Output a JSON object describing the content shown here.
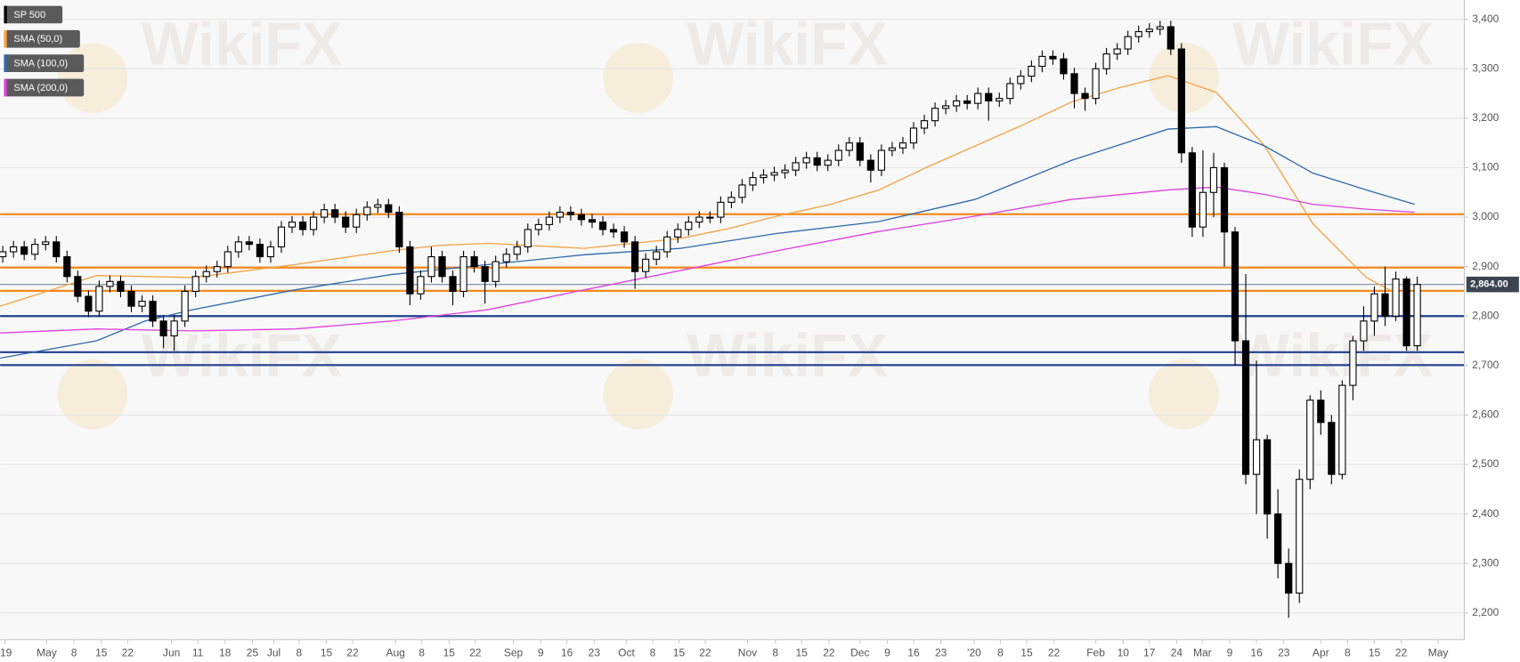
{
  "chart_data": {
    "type": "candlestick",
    "watermark": "WikiFX",
    "xlim": [
      0,
      273.3
    ],
    "ylim": [
      2146,
      3439
    ],
    "grid": true,
    "yticks": [
      {
        "value": 2200,
        "label": "2,200"
      },
      {
        "value": 2300,
        "label": "2,300"
      },
      {
        "value": 2400,
        "label": "2,400"
      },
      {
        "value": 2500,
        "label": "2,500"
      },
      {
        "value": 2600,
        "label": "2,600"
      },
      {
        "value": 2700,
        "label": "2,700"
      },
      {
        "value": 2800,
        "label": "2,800"
      },
      {
        "value": 2900,
        "label": "2,900"
      },
      {
        "value": 3000,
        "label": "3,000"
      },
      {
        "value": 3100,
        "label": "3,100"
      },
      {
        "value": 3200,
        "label": "3,200"
      },
      {
        "value": 3300,
        "label": "3,300"
      },
      {
        "value": 3400,
        "label": "3,400"
      }
    ],
    "xticks": [
      {
        "value": 0.9,
        "label": "'19"
      },
      {
        "value": 8.7,
        "label": "May"
      },
      {
        "value": 13.8,
        "label": "8"
      },
      {
        "value": 18.9,
        "label": "15"
      },
      {
        "value": 23.8,
        "label": "22"
      },
      {
        "value": 32,
        "label": "Jun"
      },
      {
        "value": 36.9,
        "label": "11"
      },
      {
        "value": 42,
        "label": "18"
      },
      {
        "value": 47.1,
        "label": "25"
      },
      {
        "value": 51.1,
        "label": "Jul"
      },
      {
        "value": 55.8,
        "label": "8"
      },
      {
        "value": 60.9,
        "label": "15"
      },
      {
        "value": 65.8,
        "label": "22"
      },
      {
        "value": 73.8,
        "label": "Aug"
      },
      {
        "value": 78.7,
        "label": "8"
      },
      {
        "value": 83.8,
        "label": "15"
      },
      {
        "value": 88.7,
        "label": "22"
      },
      {
        "value": 95.8,
        "label": "Sep"
      },
      {
        "value": 100.9,
        "label": "9"
      },
      {
        "value": 105.8,
        "label": "16"
      },
      {
        "value": 110.9,
        "label": "23"
      },
      {
        "value": 116.9,
        "label": "Oct"
      },
      {
        "value": 121.8,
        "label": "8"
      },
      {
        "value": 126.7,
        "label": "15"
      },
      {
        "value": 131.6,
        "label": "22"
      },
      {
        "value": 139.5,
        "label": "Nov"
      },
      {
        "value": 144.7,
        "label": "8"
      },
      {
        "value": 149.6,
        "label": "15"
      },
      {
        "value": 154.7,
        "label": "22"
      },
      {
        "value": 160.5,
        "label": "Dec"
      },
      {
        "value": 165.6,
        "label": "9"
      },
      {
        "value": 170.5,
        "label": "16"
      },
      {
        "value": 175.6,
        "label": "23"
      },
      {
        "value": 181.8,
        "label": "'20"
      },
      {
        "value": 186.7,
        "label": "8"
      },
      {
        "value": 191.6,
        "label": "15"
      },
      {
        "value": 196.7,
        "label": "22"
      },
      {
        "value": 204.5,
        "label": "Feb"
      },
      {
        "value": 209.6,
        "label": "10"
      },
      {
        "value": 214.5,
        "label": "17"
      },
      {
        "value": 219.6,
        "label": "24"
      },
      {
        "value": 224.4,
        "label": "Mar"
      },
      {
        "value": 229.5,
        "label": "9"
      },
      {
        "value": 234.5,
        "label": "16"
      },
      {
        "value": 239.6,
        "label": "23"
      },
      {
        "value": 246.5,
        "label": "Apr"
      },
      {
        "value": 251.5,
        "label": "8"
      },
      {
        "value": 256.5,
        "label": "15"
      },
      {
        "value": 261.5,
        "label": "22"
      },
      {
        "value": 268.4,
        "label": "May"
      }
    ],
    "series": [
      {
        "name": "SP 500",
        "color": "#000000",
        "x": [
          0.5,
          2.5,
          4.5,
          6.5,
          8.5,
          10.5,
          12.5,
          14.5,
          16.5,
          18.5,
          20.5,
          22.5,
          24.5,
          26.5,
          28.5,
          30.5,
          32.5,
          34.5,
          36.5,
          38.5,
          40.5,
          42.5,
          44.5,
          46.5,
          48.5,
          50.5,
          52.5,
          54.5,
          56.5,
          58.5,
          60.5,
          62.5,
          64.5,
          66.5,
          68.5,
          70.5,
          72.5,
          74.5,
          76.5,
          78.5,
          80.5,
          82.5,
          84.5,
          86.5,
          88.5,
          90.5,
          92.5,
          94.5,
          96.5,
          98.5,
          100.5,
          102.5,
          104.5,
          106.5,
          108.5,
          110.5,
          112.5,
          114.5,
          116.5,
          118.5,
          120.5,
          122.5,
          124.5,
          126.5,
          128.5,
          130.5,
          132.5,
          134.5,
          136.5,
          138.5,
          140.5,
          142.5,
          144.5,
          146.5,
          148.5,
          150.5,
          152.5,
          154.5,
          156.5,
          158.5,
          160.5,
          162.5,
          164.5,
          166.5,
          168.5,
          170.5,
          172.5,
          174.5,
          176.5,
          178.5,
          180.5,
          182.5,
          184.5,
          186.5,
          188.5,
          190.5,
          192.5,
          194.5,
          196.5,
          198.5,
          200.5,
          202.5,
          204.5,
          206.5,
          208.5,
          210.5,
          212.5,
          214.5,
          216.5,
          218.5,
          220.5,
          222.5,
          224.5,
          226.5,
          228.5,
          230.5,
          232.5,
          234.5,
          236.5,
          238.5,
          240.5,
          242.5,
          244.5,
          246.5,
          248.5,
          250.5,
          252.5,
          254.5,
          256.5,
          258.5,
          260.5,
          262.5,
          264.5
        ],
        "open": [
          2920,
          2930,
          2940,
          2925,
          2945,
          2950,
          2920,
          2880,
          2840,
          2810,
          2860,
          2870,
          2850,
          2820,
          2830,
          2790,
          2760,
          2790,
          2850,
          2880,
          2890,
          2900,
          2930,
          2950,
          2945,
          2920,
          2940,
          2980,
          2990,
          2975,
          3000,
          3015,
          3000,
          2980,
          3005,
          3020,
          3025,
          3010,
          2940,
          2845,
          2880,
          2920,
          2880,
          2850,
          2920,
          2900,
          2870,
          2910,
          2925,
          2940,
          2975,
          2985,
          3000,
          3010,
          3005,
          2995,
          2990,
          2975,
          2970,
          2950,
          2890,
          2915,
          2930,
          2960,
          2975,
          2990,
          3000,
          3000,
          3030,
          3040,
          3065,
          3080,
          3085,
          3090,
          3095,
          3110,
          3120,
          3105,
          3115,
          3135,
          3150,
          3115,
          3095,
          3135,
          3140,
          3150,
          3180,
          3195,
          3220,
          3225,
          3235,
          3230,
          3250,
          3235,
          3240,
          3270,
          3285,
          3305,
          3325,
          3320,
          3290,
          3250,
          3240,
          3300,
          3330,
          3340,
          3365,
          3375,
          3380,
          3385,
          3340,
          3130,
          2980,
          3050,
          3100,
          2970,
          2750,
          2480,
          2550,
          2400,
          2300,
          2240,
          2470,
          2630,
          2585,
          2480,
          2660,
          2750,
          2790,
          2845,
          2800,
          2875,
          2740
        ],
        "high": [
          2942,
          2952,
          2952,
          2957,
          2962,
          2962,
          2932,
          2892,
          2852,
          2872,
          2882,
          2882,
          2862,
          2842,
          2842,
          2802,
          2802,
          2862,
          2892,
          2902,
          2912,
          2942,
          2962,
          2962,
          2957,
          2952,
          2992,
          3002,
          3002,
          3012,
          3027,
          3027,
          3012,
          3017,
          3032,
          3037,
          3037,
          3022,
          2952,
          2892,
          2940,
          2932,
          2892,
          2932,
          2932,
          2912,
          2922,
          2937,
          2952,
          2987,
          2997,
          3012,
          3022,
          3022,
          3017,
          3007,
          3002,
          2987,
          2982,
          2962,
          2927,
          2942,
          2972,
          2987,
          3002,
          3012,
          3012,
          3042,
          3052,
          3077,
          3092,
          3097,
          3102,
          3107,
          3122,
          3132,
          3132,
          3127,
          3147,
          3162,
          3162,
          3127,
          3147,
          3152,
          3162,
          3192,
          3207,
          3232,
          3237,
          3247,
          3247,
          3262,
          3262,
          3252,
          3282,
          3297,
          3317,
          3337,
          3337,
          3332,
          3302,
          3262,
          3312,
          3342,
          3352,
          3377,
          3387,
          3392,
          3397,
          3397,
          3352,
          3142,
          3135,
          3130,
          3110,
          2980,
          2885,
          2710,
          2560,
          2450,
          2330,
          2490,
          2640,
          2650,
          2600,
          2670,
          2760,
          2820,
          2860,
          2900,
          2890,
          2880,
          2880
        ],
        "low": [
          2908,
          2918,
          2913,
          2913,
          2933,
          2908,
          2868,
          2828,
          2798,
          2798,
          2848,
          2838,
          2808,
          2808,
          2778,
          2735,
          2730,
          2778,
          2838,
          2868,
          2878,
          2888,
          2918,
          2933,
          2908,
          2908,
          2928,
          2968,
          2963,
          2963,
          2988,
          2988,
          2968,
          2968,
          2993,
          3008,
          2998,
          2928,
          2822,
          2833,
          2868,
          2868,
          2822,
          2838,
          2888,
          2825,
          2858,
          2898,
          2913,
          2928,
          2963,
          2973,
          2988,
          2993,
          2983,
          2978,
          2963,
          2958,
          2938,
          2855,
          2878,
          2903,
          2918,
          2948,
          2963,
          2978,
          2988,
          2988,
          3018,
          3028,
          3053,
          3068,
          3073,
          3078,
          3083,
          3098,
          3093,
          3093,
          3103,
          3123,
          3103,
          3070,
          3083,
          3123,
          3128,
          3138,
          3168,
          3183,
          3208,
          3213,
          3218,
          3218,
          3195,
          3223,
          3228,
          3258,
          3273,
          3293,
          3308,
          3278,
          3220,
          3215,
          3228,
          3288,
          3318,
          3328,
          3353,
          3363,
          3368,
          3328,
          3110,
          2960,
          2960,
          3000,
          2900,
          2700,
          2460,
          2400,
          2350,
          2270,
          2190,
          2220,
          2450,
          2560,
          2460,
          2470,
          2630,
          2730,
          2760,
          2780,
          2790,
          2730,
          2730
        ],
        "close": [
          2930,
          2940,
          2925,
          2945,
          2950,
          2920,
          2880,
          2840,
          2810,
          2860,
          2870,
          2850,
          2820,
          2830,
          2790,
          2760,
          2790,
          2850,
          2880,
          2890,
          2900,
          2930,
          2950,
          2945,
          2920,
          2940,
          2980,
          2990,
          2975,
          3000,
          3015,
          3000,
          2980,
          3005,
          3020,
          3025,
          3010,
          2940,
          2845,
          2880,
          2920,
          2880,
          2850,
          2920,
          2900,
          2870,
          2910,
          2925,
          2940,
          2975,
          2985,
          3000,
          3010,
          3005,
          2995,
          2990,
          2975,
          2970,
          2950,
          2890,
          2915,
          2930,
          2960,
          2975,
          2990,
          3000,
          3000,
          3030,
          3040,
          3065,
          3080,
          3085,
          3090,
          3095,
          3110,
          3120,
          3105,
          3115,
          3135,
          3150,
          3115,
          3095,
          3135,
          3140,
          3150,
          3180,
          3195,
          3220,
          3225,
          3235,
          3230,
          3250,
          3235,
          3240,
          3270,
          3285,
          3305,
          3325,
          3320,
          3290,
          3250,
          3240,
          3300,
          3330,
          3340,
          3365,
          3375,
          3380,
          3385,
          3340,
          3130,
          2980,
          3050,
          3100,
          2970,
          2750,
          2480,
          2550,
          2400,
          2300,
          2240,
          2470,
          2630,
          2585,
          2480,
          2660,
          2750,
          2790,
          2845,
          2800,
          2875,
          2740,
          2864
        ]
      }
    ],
    "lines": [
      {
        "name": "SMA (50,0)",
        "color": "#f5a142",
        "x": [
          0,
          18,
          36,
          55,
          73,
          82,
          91,
          109,
          127,
          136,
          145,
          155,
          164,
          173,
          182,
          191,
          200,
          209,
          218,
          227,
          236,
          245,
          255,
          260
        ],
        "values": [
          2820,
          2882,
          2878,
          2904,
          2932,
          2943,
          2947,
          2937,
          2957,
          2977,
          3002,
          3026,
          3055,
          3101,
          3144,
          3187,
          3233,
          3262,
          3286,
          3252,
          3144,
          2987,
          2878,
          2849
        ]
      },
      {
        "name": "SMA (100,0)",
        "color": "#2e6aaa",
        "x": [
          0,
          18,
          27,
          36,
          55,
          73,
          91,
          109,
          127,
          145,
          164,
          182,
          200,
          218,
          227,
          236,
          245,
          255,
          264
        ],
        "values": [
          2715,
          2750,
          2790,
          2813,
          2853,
          2884,
          2904,
          2924,
          2937,
          2967,
          2991,
          3036,
          3115,
          3178,
          3183,
          3144,
          3089,
          3055,
          3026
        ]
      },
      {
        "name": "SMA (200,0)",
        "color": "#e040e0",
        "x": [
          0,
          18,
          36,
          55,
          73,
          91,
          109,
          127,
          145,
          164,
          182,
          200,
          218,
          227,
          236,
          245,
          255,
          264
        ],
        "values": [
          2766,
          2774,
          2770,
          2774,
          2790,
          2813,
          2853,
          2892,
          2932,
          2971,
          3002,
          3036,
          3055,
          3061,
          3046,
          3026,
          3016,
          3010
        ]
      }
    ],
    "levels": [
      {
        "value": 3006,
        "color": "#f28a1c"
      },
      {
        "value": 2898,
        "color": "#f28a1c"
      },
      {
        "value": 2851,
        "color": "#f28a1c"
      },
      {
        "value": 2800,
        "color": "#1f3f8f"
      },
      {
        "value": 2727,
        "color": "#1f3f8f"
      },
      {
        "value": 2701,
        "color": "#1f3f8f"
      }
    ],
    "last_price": {
      "value": 2864,
      "label": "2,864.00"
    }
  }
}
